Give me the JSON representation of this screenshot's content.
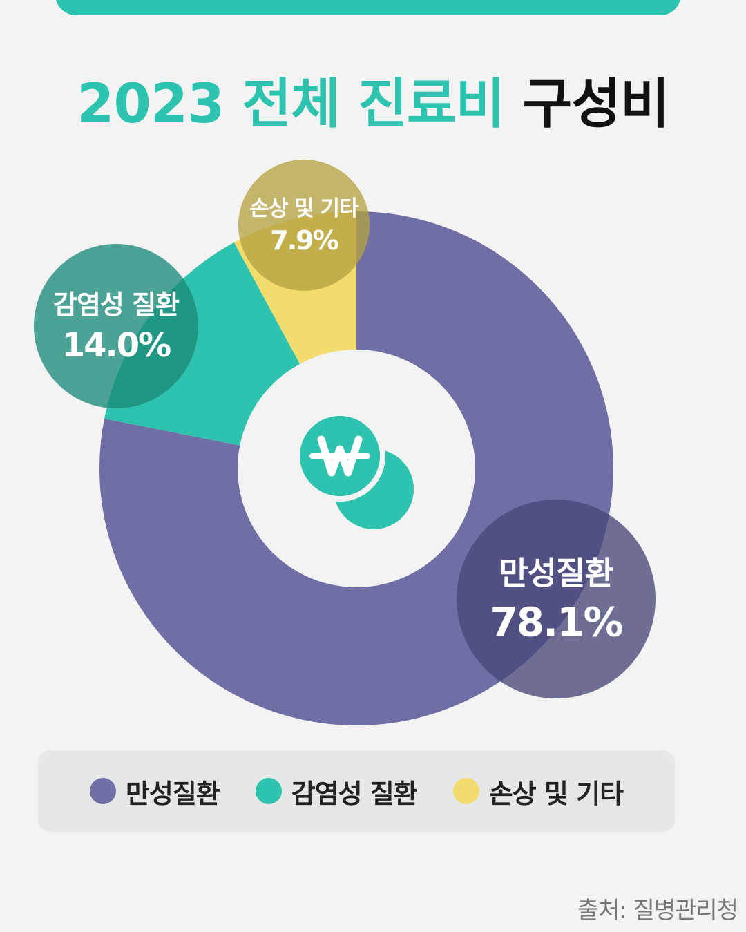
{
  "title": {
    "accent": "2023 전체 진료비",
    "dark": "구성비"
  },
  "colors": {
    "accent": "#2ec3ae",
    "chronic": "#6f6fa6",
    "infection": "#2ec3ae",
    "injury": "#f2dc6e",
    "background": "#f3f3f3"
  },
  "center_icon": "won-coins-icon",
  "chart_data": {
    "type": "pie",
    "style": "donut",
    "categories": [
      "만성질환",
      "감염성 질환",
      "손상 및 기타"
    ],
    "values": [
      78.1,
      14.0,
      7.9
    ],
    "labels": [
      "78.1%",
      "14.0%",
      "7.9%"
    ],
    "colors": [
      "#6f6fa6",
      "#2ec3ae",
      "#f2dc6e"
    ],
    "bubble_colors": [
      "#484878",
      "#1c8a7a",
      "#b5a343"
    ],
    "title": "2023 전체 진료비 구성비",
    "legend_position": "bottom"
  },
  "legend": {
    "items": [
      {
        "label": "만성질환",
        "color": "#6f6fa6"
      },
      {
        "label": "감염성 질환",
        "color": "#2ec3ae"
      },
      {
        "label": "손상 및 기타",
        "color": "#f2dc6e"
      }
    ]
  },
  "source": "출처: 질병관리청"
}
